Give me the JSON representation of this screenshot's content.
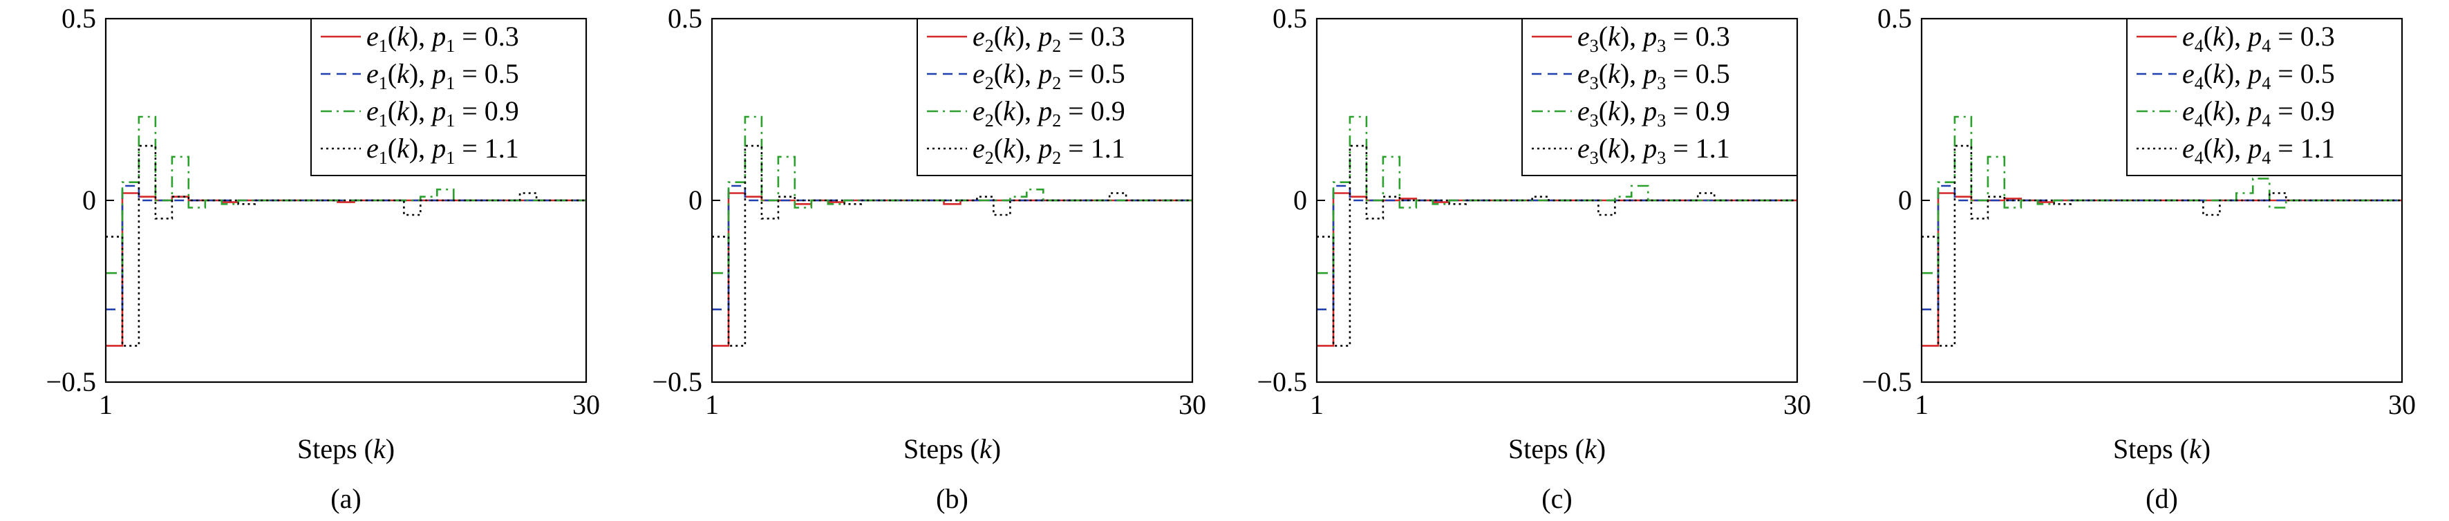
{
  "figure": {
    "xlabel_text": "Steps",
    "xlabel_var": "k"
  },
  "chart_data": [
    {
      "type": "line",
      "step": true,
      "panel_label": "(a)",
      "subscript": "1",
      "xlabel": "Steps (k)",
      "ylabel": "",
      "xlim": [
        1,
        30
      ],
      "ylim": [
        -0.5,
        0.5
      ],
      "xticks": [
        "1",
        "30"
      ],
      "yticks": [
        "0.5",
        "0",
        "−0.5"
      ],
      "grid": false,
      "legend_position": "top-right",
      "x": [
        1,
        2,
        3,
        4,
        5,
        6,
        7,
        8,
        9,
        10,
        11,
        12,
        13,
        14,
        15,
        16,
        17,
        18,
        19,
        20,
        21,
        22,
        23,
        24,
        25,
        26,
        27,
        28,
        29,
        30
      ],
      "series": [
        {
          "name": "e1(k), p1 = 0.3",
          "color": "#d62728",
          "dash": "solid",
          "values": [
            -0.4,
            0.02,
            0.01,
            0.0,
            0.01,
            0,
            0,
            -0.005,
            0,
            0,
            0,
            0,
            0,
            0,
            -0.005,
            0,
            0,
            0,
            0,
            0,
            0,
            0,
            0,
            0,
            0,
            0,
            0,
            0,
            0,
            0
          ]
        },
        {
          "name": "e1(k), p1 = 0.5",
          "color": "#1f3fae",
          "dash": "dashed",
          "values": [
            -0.3,
            0.04,
            0.0,
            0.0,
            0,
            0,
            0,
            0,
            0,
            0,
            0,
            0,
            0,
            0,
            0,
            0,
            0,
            0,
            0,
            0,
            0,
            0,
            0,
            0,
            0,
            0,
            0,
            0,
            0,
            0
          ]
        },
        {
          "name": "e1(k), p1 = 0.9",
          "color": "#2ca02c",
          "dash": "dashdot",
          "values": [
            -0.2,
            0.05,
            0.23,
            0.0,
            0.12,
            -0.02,
            0,
            -0.01,
            0,
            0,
            0,
            0,
            0,
            0,
            0,
            0,
            0,
            0,
            0,
            0.01,
            0.03,
            0,
            0,
            0,
            0,
            0,
            0,
            0,
            0,
            0
          ]
        },
        {
          "name": "e1(k), p1 = 1.1",
          "color": "#000000",
          "dash": "dotted",
          "values": [
            -0.1,
            -0.4,
            0.15,
            -0.05,
            0.01,
            0,
            0,
            0,
            -0.01,
            0,
            0,
            0,
            0,
            0,
            0,
            0,
            0,
            0,
            -0.04,
            0,
            0,
            0,
            0,
            0,
            0,
            0.02,
            0,
            0,
            0,
            0
          ]
        }
      ]
    },
    {
      "type": "line",
      "step": true,
      "panel_label": "(b)",
      "subscript": "2",
      "xlabel": "Steps (k)",
      "ylabel": "",
      "xlim": [
        1,
        30
      ],
      "ylim": [
        -0.5,
        0.5
      ],
      "xticks": [
        "1",
        "30"
      ],
      "yticks": [
        "0.5",
        "0",
        "−0.5"
      ],
      "grid": false,
      "legend_position": "top-right",
      "x": [
        1,
        2,
        3,
        4,
        5,
        6,
        7,
        8,
        9,
        10,
        11,
        12,
        13,
        14,
        15,
        16,
        17,
        18,
        19,
        20,
        21,
        22,
        23,
        24,
        25,
        26,
        27,
        28,
        29,
        30
      ],
      "series": [
        {
          "name": "e2(k), p2 = 0.3",
          "color": "#d62728",
          "dash": "solid",
          "values": [
            -0.4,
            0.02,
            0.01,
            0.0,
            0.0,
            -0.01,
            0,
            -0.005,
            0,
            0,
            0,
            0,
            0,
            0,
            -0.01,
            0,
            0,
            0,
            0,
            0,
            0,
            0,
            0,
            0,
            0,
            0,
            0,
            0,
            0,
            0
          ]
        },
        {
          "name": "e2(k), p2 = 0.5",
          "color": "#1f3fae",
          "dash": "dashed",
          "values": [
            -0.3,
            0.04,
            0.0,
            0.0,
            0,
            0,
            0,
            0,
            0,
            0,
            0,
            0,
            0,
            0,
            0,
            0,
            0,
            0,
            0,
            0,
            0,
            0,
            0,
            0,
            0,
            0,
            0,
            0,
            0,
            0
          ]
        },
        {
          "name": "e2(k), p2 = 0.9",
          "color": "#2ca02c",
          "dash": "dashdot",
          "values": [
            -0.2,
            0.05,
            0.23,
            0.0,
            0.12,
            -0.02,
            0,
            -0.01,
            0,
            0,
            0,
            0,
            0,
            0,
            0,
            0,
            0,
            0,
            0.01,
            0.03,
            0,
            0,
            0,
            0,
            0,
            0,
            0,
            0,
            0,
            0
          ]
        },
        {
          "name": "e2(k), p2 = 1.1",
          "color": "#000000",
          "dash": "dotted",
          "values": [
            -0.1,
            -0.4,
            0.15,
            -0.05,
            0.01,
            0,
            0,
            0,
            -0.01,
            0,
            0,
            0,
            0,
            0,
            0,
            0,
            0.01,
            -0.04,
            0,
            0,
            0,
            0,
            0,
            0,
            0.02,
            0,
            0,
            0,
            0,
            0
          ]
        }
      ]
    },
    {
      "type": "line",
      "step": true,
      "panel_label": "(c)",
      "subscript": "3",
      "xlabel": "Steps (k)",
      "ylabel": "",
      "xlim": [
        1,
        30
      ],
      "ylim": [
        -0.5,
        0.5
      ],
      "xticks": [
        "1",
        "30"
      ],
      "yticks": [
        "0.5",
        "0",
        "−0.5"
      ],
      "grid": false,
      "legend_position": "top-right",
      "x": [
        1,
        2,
        3,
        4,
        5,
        6,
        7,
        8,
        9,
        10,
        11,
        12,
        13,
        14,
        15,
        16,
        17,
        18,
        19,
        20,
        21,
        22,
        23,
        24,
        25,
        26,
        27,
        28,
        29,
        30
      ],
      "series": [
        {
          "name": "e3(k), p3 = 0.3",
          "color": "#d62728",
          "dash": "solid",
          "values": [
            -0.4,
            0.02,
            0.01,
            0.0,
            0.0,
            0.005,
            0,
            -0.005,
            0,
            0,
            0,
            0,
            0,
            0,
            0,
            0,
            0,
            0,
            0,
            0,
            0,
            0,
            0,
            0,
            0,
            0,
            0,
            0,
            0,
            0
          ]
        },
        {
          "name": "e3(k), p3 = 0.5",
          "color": "#1f3fae",
          "dash": "dashed",
          "values": [
            -0.3,
            0.04,
            0.0,
            0.0,
            0,
            0,
            0,
            0,
            0,
            0,
            0,
            0,
            0,
            0,
            0,
            0,
            0,
            0,
            0,
            0,
            0,
            0,
            0,
            0,
            0,
            0,
            0,
            0,
            0,
            0
          ]
        },
        {
          "name": "e3(k), p3 = 0.9",
          "color": "#2ca02c",
          "dash": "dashdot",
          "values": [
            -0.2,
            0.05,
            0.23,
            0.0,
            0.12,
            -0.02,
            0,
            -0.01,
            0,
            0,
            0,
            0,
            0,
            0,
            0,
            0,
            0,
            0,
            0.01,
            0.04,
            0,
            0,
            0,
            0,
            0,
            0,
            0,
            0,
            0,
            0
          ]
        },
        {
          "name": "e3(k), p3 = 1.1",
          "color": "#000000",
          "dash": "dotted",
          "values": [
            -0.1,
            -0.4,
            0.15,
            -0.05,
            0.01,
            0,
            0,
            0,
            -0.01,
            0,
            0,
            0,
            0,
            0.01,
            0,
            0,
            0,
            -0.04,
            0,
            0,
            0,
            0,
            0,
            0.02,
            0,
            0,
            0,
            0,
            0,
            0
          ]
        }
      ]
    },
    {
      "type": "line",
      "step": true,
      "panel_label": "(d)",
      "subscript": "4",
      "xlabel": "Steps (k)",
      "ylabel": "",
      "xlim": [
        1,
        30
      ],
      "ylim": [
        -0.5,
        0.5
      ],
      "xticks": [
        "1",
        "30"
      ],
      "yticks": [
        "0.5",
        "0",
        "−0.5"
      ],
      "grid": false,
      "legend_position": "top-right",
      "x": [
        1,
        2,
        3,
        4,
        5,
        6,
        7,
        8,
        9,
        10,
        11,
        12,
        13,
        14,
        15,
        16,
        17,
        18,
        19,
        20,
        21,
        22,
        23,
        24,
        25,
        26,
        27,
        28,
        29,
        30
      ],
      "series": [
        {
          "name": "e4(k), p4 = 0.3",
          "color": "#d62728",
          "dash": "solid",
          "values": [
            -0.4,
            0.02,
            0.01,
            0.0,
            0.0,
            0.005,
            0,
            -0.005,
            0,
            0,
            0,
            0,
            0,
            0,
            0,
            0,
            0,
            0,
            0,
            0,
            0,
            0,
            0,
            0,
            0,
            0,
            0,
            0,
            0,
            0
          ]
        },
        {
          "name": "e4(k), p4 = 0.5",
          "color": "#1f3fae",
          "dash": "dashed",
          "values": [
            -0.3,
            0.04,
            0.0,
            0.0,
            0,
            0,
            0,
            0,
            0,
            0,
            0,
            0,
            0,
            0,
            0,
            0,
            0,
            0,
            0,
            0,
            0,
            0,
            0,
            0,
            0,
            0,
            0,
            0,
            0,
            0
          ]
        },
        {
          "name": "e4(k), p4 = 0.9",
          "color": "#2ca02c",
          "dash": "dashdot",
          "values": [
            -0.2,
            0.05,
            0.23,
            0.0,
            0.12,
            -0.02,
            0,
            -0.01,
            0,
            0,
            0,
            0,
            0,
            0,
            0,
            0,
            0,
            0,
            0,
            0.02,
            0.06,
            -0.02,
            0,
            0,
            0,
            0,
            0,
            0,
            0,
            0
          ]
        },
        {
          "name": "e4(k), p4 = 1.1",
          "color": "#000000",
          "dash": "dotted",
          "values": [
            -0.1,
            -0.4,
            0.15,
            -0.05,
            0.01,
            0,
            0,
            0,
            -0.01,
            0,
            0,
            0,
            0,
            0,
            0,
            0,
            0,
            -0.04,
            0,
            0,
            0,
            0.02,
            0,
            0,
            0,
            0,
            0,
            0,
            0,
            0
          ]
        }
      ]
    }
  ]
}
